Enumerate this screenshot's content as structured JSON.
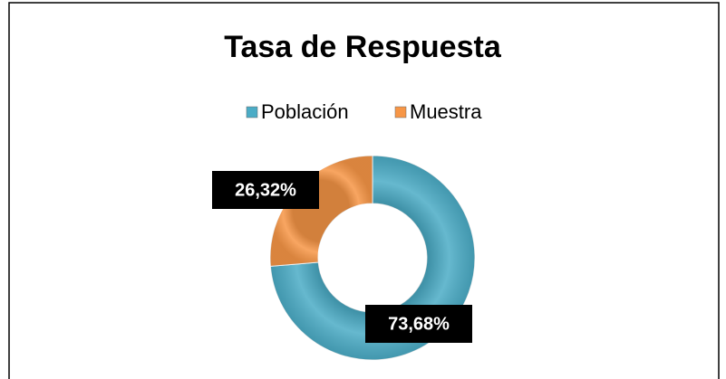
{
  "chart_data": {
    "type": "doughnut",
    "title": "Tasa de Respuesta",
    "categories": [
      "Población",
      "Muestra"
    ],
    "values": [
      73.68,
      26.32
    ],
    "value_labels": [
      "73,68%",
      "26,32%"
    ],
    "colors": [
      "#4bacc6",
      "#f79646"
    ],
    "legend": "top"
  }
}
